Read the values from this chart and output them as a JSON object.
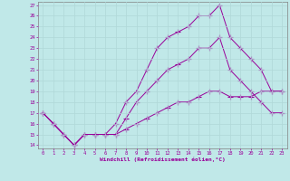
{
  "xlabel": "Windchill (Refroidissement éolien,°C)",
  "xlim": [
    0,
    23
  ],
  "ylim": [
    14,
    27
  ],
  "xticks": [
    0,
    1,
    2,
    3,
    4,
    5,
    6,
    7,
    8,
    9,
    10,
    11,
    12,
    13,
    14,
    15,
    16,
    17,
    18,
    19,
    20,
    21,
    22,
    23
  ],
  "yticks": [
    14,
    15,
    16,
    17,
    18,
    19,
    20,
    21,
    22,
    23,
    24,
    25,
    26,
    27
  ],
  "bg_color": "#c0e8e8",
  "line_color": "#990099",
  "grid_color": "#b0d8d8",
  "line1_x": [
    0,
    1,
    2,
    3,
    4,
    5,
    6,
    7,
    8,
    9,
    10,
    11,
    12,
    13,
    14,
    15,
    16,
    17,
    18,
    19,
    20,
    21,
    22,
    23
  ],
  "line1_y": [
    17,
    16,
    15,
    14,
    15,
    15,
    15,
    16,
    18,
    19,
    21,
    23,
    24,
    24.5,
    25,
    26,
    26,
    27,
    24,
    23,
    22,
    21,
    19,
    19
  ],
  "line2_x": [
    0,
    1,
    2,
    3,
    4,
    5,
    6,
    7,
    8,
    9,
    10,
    11,
    12,
    13,
    14,
    15,
    16,
    17,
    18,
    19,
    20,
    21,
    22,
    23
  ],
  "line2_y": [
    17,
    16,
    15,
    14,
    15,
    15,
    15,
    15,
    16.5,
    18,
    19,
    20,
    21,
    21.5,
    22,
    23,
    23,
    24,
    21,
    20,
    19,
    18,
    17,
    17
  ],
  "line3_x": [
    0,
    1,
    2,
    3,
    4,
    5,
    6,
    7,
    8,
    9,
    10,
    11,
    12,
    13,
    14,
    15,
    16,
    17,
    18,
    19,
    20,
    21,
    22,
    23
  ],
  "line3_y": [
    17,
    16,
    15,
    14,
    15,
    15,
    15,
    15,
    15.5,
    16,
    16.5,
    17,
    17.5,
    18,
    18,
    18.5,
    19,
    19,
    18.5,
    18.5,
    18.5,
    19,
    19,
    19
  ]
}
